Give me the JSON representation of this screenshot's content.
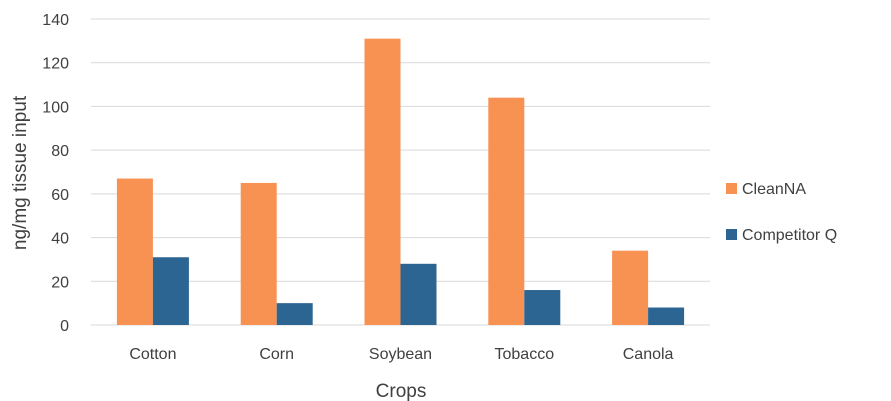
{
  "chart_data": {
    "type": "bar",
    "title": "",
    "xlabel": "Crops",
    "ylabel": "ng/mg tissue input",
    "categories": [
      "Cotton",
      "Corn",
      "Soybean",
      "Tobacco",
      "Canola"
    ],
    "series": [
      {
        "name": "CleanNA",
        "color": "#f79253",
        "values": [
          67,
          65,
          131,
          104,
          34
        ]
      },
      {
        "name": "Competitor Q",
        "color": "#2c6592",
        "values": [
          31,
          10,
          28,
          16,
          8
        ]
      }
    ],
    "ylim": [
      0,
      140
    ],
    "yticks": [
      0,
      20,
      40,
      60,
      80,
      100,
      120,
      140
    ],
    "grid": true,
    "legend_position": "right"
  }
}
